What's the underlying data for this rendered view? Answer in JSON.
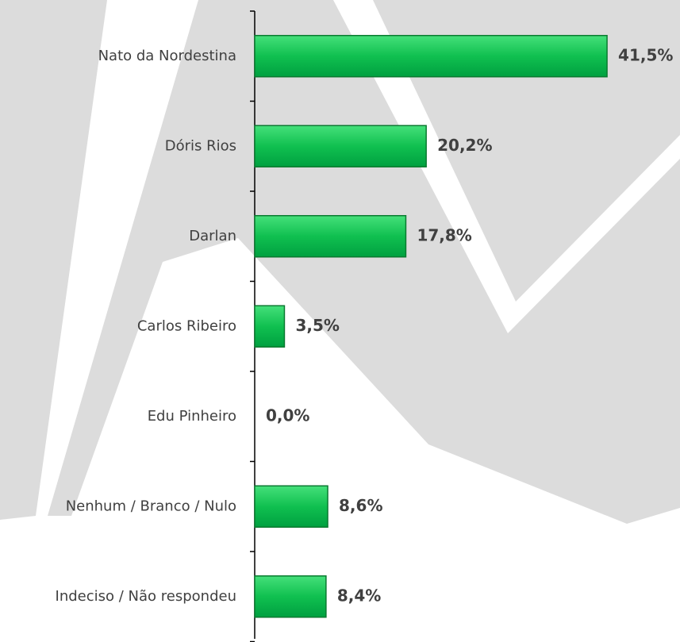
{
  "chart_data": {
    "type": "barh",
    "categories": [
      "Nato da Nordestina",
      "Dóris Rios",
      "Darlan",
      "Carlos Ribeiro",
      "Edu Pinheiro",
      "Nenhum / Branco / Nulo",
      "Indeciso / Não respondeu"
    ],
    "values": [
      41.5,
      20.2,
      17.8,
      3.5,
      0.0,
      8.6,
      8.4
    ],
    "value_labels": [
      "41,5%",
      "20,2%",
      "17,8%",
      "3,5%",
      "0,0%",
      "8,6%",
      "8,4%"
    ],
    "color": "#00b050"
  }
}
